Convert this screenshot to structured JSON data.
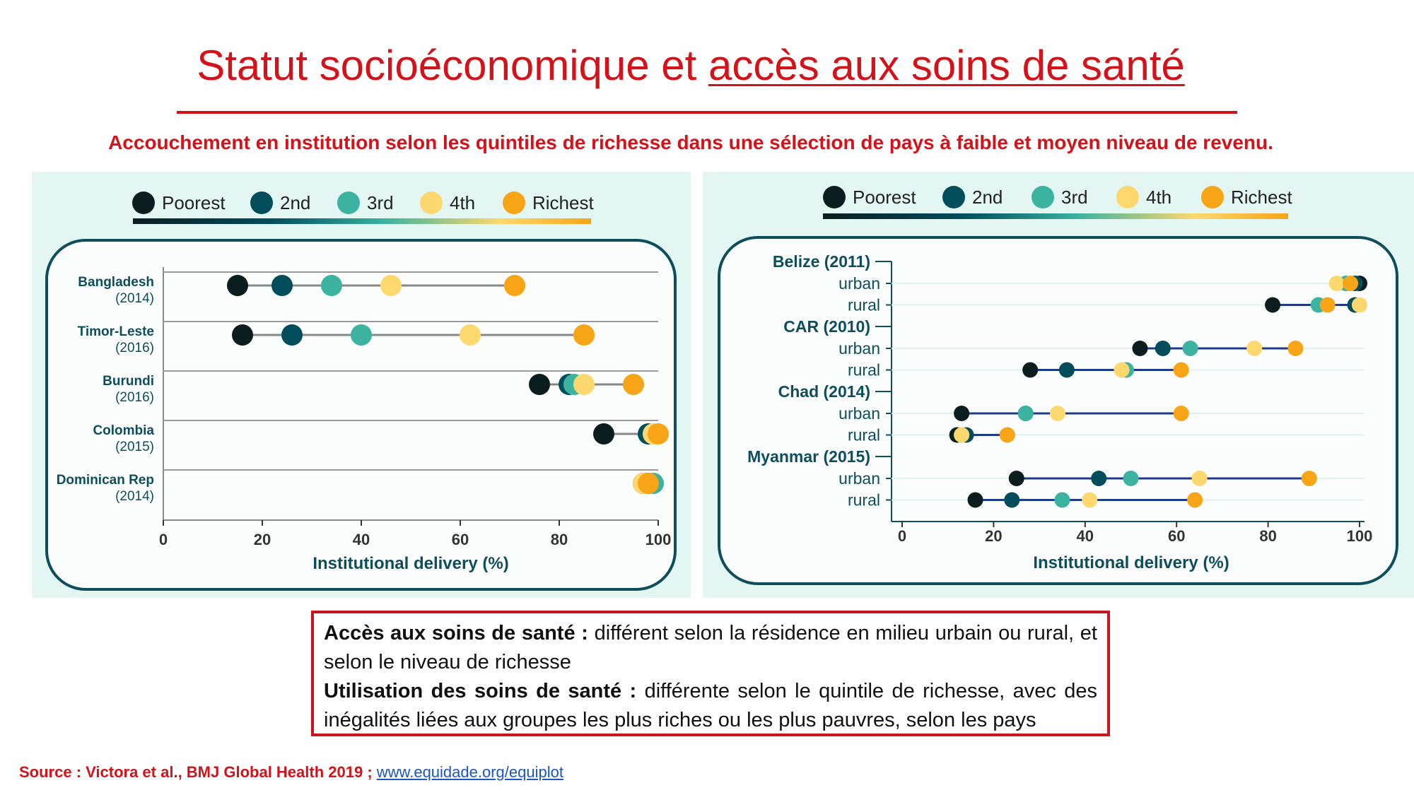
{
  "title": {
    "part1": "Statut socioéconomique et ",
    "part2": "accès aux soins de santé"
  },
  "subtitle": "Accouchement en institution selon les quintiles de richesse dans une sélection de pays à faible et moyen niveau de revenu.",
  "quintile_colors": {
    "Poorest": "#0c1d20",
    "2nd": "#014d5b",
    "3rd": "#3bb3a0",
    "4th": "#fdd86e",
    "Richest": "#f8a417"
  },
  "chart_data": [
    {
      "type": "scatter",
      "xlabel": "Institutional delivery (%)",
      "xlim": [
        0,
        100
      ],
      "xticks": [
        "0",
        "20",
        "40",
        "60",
        "80",
        "100"
      ],
      "legend": [
        "Poorest",
        "2nd",
        "3rd",
        "4th",
        "Richest"
      ],
      "legend_position": "top",
      "rows": [
        {
          "label": "Bangladesh",
          "sub": "(2014)",
          "values": {
            "Poorest": 15,
            "2nd": 24,
            "3rd": 34,
            "4th": 46,
            "Richest": 71
          }
        },
        {
          "label": "Timor-Leste",
          "sub": "(2016)",
          "values": {
            "Poorest": 16,
            "2nd": 26,
            "3rd": 40,
            "4th": 62,
            "Richest": 85
          }
        },
        {
          "label": "Burundi",
          "sub": "(2016)",
          "values": {
            "Poorest": 76,
            "2nd": 82,
            "3rd": 83,
            "4th": 85,
            "Richest": 95
          }
        },
        {
          "label": "Colombia",
          "sub": "(2015)",
          "values": {
            "Poorest": 89,
            "2nd": 98,
            "3rd": 99,
            "4th": 99,
            "Richest": 100
          }
        },
        {
          "label": "Dominican Rep",
          "sub": "(2014)",
          "values": {
            "Poorest": 97,
            "2nd": 98,
            "3rd": 99,
            "4th": 97,
            "Richest": 98
          }
        }
      ]
    },
    {
      "type": "scatter",
      "xlabel": "Institutional delivery (%)",
      "xlim": [
        0,
        100
      ],
      "xticks": [
        "0",
        "20",
        "40",
        "60",
        "80",
        "100"
      ],
      "legend": [
        "Poorest",
        "2nd",
        "3rd",
        "4th",
        "Richest"
      ],
      "legend_position": "top",
      "groups": [
        {
          "label": "Belize (2011)",
          "rows": [
            {
              "label": "urban",
              "values": {
                "Poorest": 100,
                "2nd": 99,
                "3rd": 97,
                "4th": 95,
                "Richest": 98
              }
            },
            {
              "label": "rural",
              "values": {
                "Poorest": 81,
                "2nd": 99,
                "3rd": 91,
                "4th": 100,
                "Richest": 93
              }
            }
          ]
        },
        {
          "label": "CAR (2010)",
          "rows": [
            {
              "label": "urban",
              "values": {
                "Poorest": 52,
                "2nd": 57,
                "3rd": 63,
                "4th": 77,
                "Richest": 86
              }
            },
            {
              "label": "rural",
              "values": {
                "Poorest": 28,
                "2nd": 36,
                "3rd": 49,
                "4th": 48,
                "Richest": 61
              }
            }
          ]
        },
        {
          "label": "Chad (2014)",
          "rows": [
            {
              "label": "urban",
              "values": {
                "Poorest": 13,
                "2nd": 27,
                "3rd": 27,
                "4th": 34,
                "Richest": 61
              }
            },
            {
              "label": "rural",
              "values": {
                "Poorest": 12,
                "2nd": 14,
                "3rd": 13,
                "4th": 13,
                "Richest": 23
              }
            }
          ]
        },
        {
          "label": "Myanmar (2015)",
          "rows": [
            {
              "label": "urban",
              "values": {
                "Poorest": 25,
                "2nd": 43,
                "3rd": 50,
                "4th": 65,
                "Richest": 89
              }
            },
            {
              "label": "rural",
              "values": {
                "Poorest": 16,
                "2nd": 24,
                "3rd": 35,
                "4th": 41,
                "Richest": 64
              }
            }
          ]
        }
      ]
    }
  ],
  "note": {
    "line1_bold": "Accès aux soins de santé :",
    "line1_text": " différent selon la résidence en milieu urbain ou rural, et selon le niveau de richesse",
    "line2_bold": "Utilisation des soins de santé :",
    "line2_text": " différente selon le quintile de richesse, avec des inégalités liées aux groupes les plus riches ou les plus pauvres, selon les pays"
  },
  "source": {
    "text": "Source : Victora et al., BMJ Global Health 2019 ; ",
    "link": "www.equidade.org/equiplot"
  }
}
